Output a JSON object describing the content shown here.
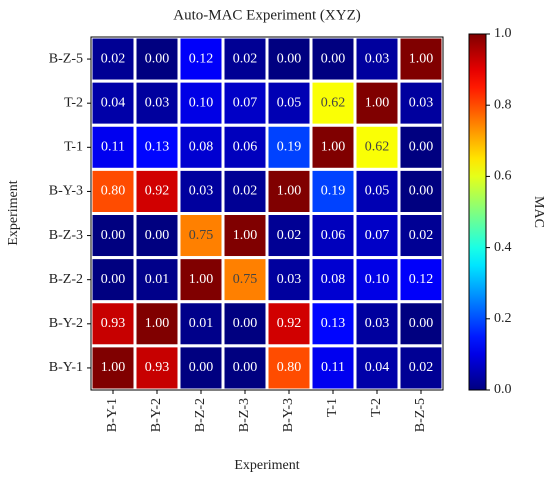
{
  "chart_data": {
    "type": "heatmap",
    "title": "Auto-MAC Experiment (XYZ)",
    "x_label": "Experiment",
    "y_label": "Experiment",
    "x_categories": [
      "B-Y-1",
      "B-Y-2",
      "B-Z-2",
      "B-Z-3",
      "B-Y-3",
      "T-1",
      "T-2",
      "B-Z-5"
    ],
    "y_categories": [
      "B-Z-5",
      "T-2",
      "T-1",
      "B-Y-3",
      "B-Z-3",
      "B-Z-2",
      "B-Y-2",
      "B-Y-1"
    ],
    "values": [
      [
        0.02,
        0,
        0.12,
        0.02,
        0,
        0,
        0.03,
        1
      ],
      [
        0.04,
        0.03,
        0.1,
        0.07,
        0.05,
        0.62,
        1,
        0.03
      ],
      [
        0.11,
        0.13,
        0.08,
        0.06,
        0.19,
        1,
        0.62,
        0
      ],
      [
        0.8,
        0.92,
        0.03,
        0.02,
        1,
        0.19,
        0.05,
        0
      ],
      [
        0,
        0,
        0.75,
        1,
        0.02,
        0.06,
        0.07,
        0.02
      ],
      [
        0,
        0.01,
        1,
        0.75,
        0.03,
        0.08,
        0.1,
        0.12
      ],
      [
        0.93,
        1,
        0.01,
        0,
        0.92,
        0.13,
        0.03,
        0
      ],
      [
        1,
        0.93,
        0,
        0,
        0.8,
        0.11,
        0.04,
        0.02
      ]
    ],
    "value_labels": [
      [
        "0.02",
        "0.00",
        "0.12",
        "0.02",
        "0.00",
        "0.00",
        "0.03",
        "1.00"
      ],
      [
        "0.04",
        "0.03",
        "0.10",
        "0.07",
        "0.05",
        "0.62",
        "1.00",
        "0.03"
      ],
      [
        "0.11",
        "0.13",
        "0.08",
        "0.06",
        "0.19",
        "1.00",
        "0.62",
        "0.00"
      ],
      [
        "0.80",
        "0.92",
        "0.03",
        "0.02",
        "1.00",
        "0.19",
        "0.05",
        "0.00"
      ],
      [
        "0.00",
        "0.00",
        "0.75",
        "1.00",
        "0.02",
        "0.06",
        "0.07",
        "0.02"
      ],
      [
        "0.00",
        "0.01",
        "1.00",
        "0.75",
        "0.03",
        "0.08",
        "0.10",
        "0.12"
      ],
      [
        "0.93",
        "1.00",
        "0.01",
        "0.00",
        "0.92",
        "0.13",
        "0.03",
        "0.00"
      ],
      [
        "1.00",
        "0.93",
        "0.00",
        "0.00",
        "0.80",
        "0.11",
        "0.04",
        "0.02"
      ]
    ],
    "colormap": "jet",
    "colorbar_label": "MAC",
    "clim": [
      0,
      1
    ],
    "cticks": [
      {
        "value": 0,
        "label": "0.0"
      },
      {
        "value": 0.2,
        "label": "0.2"
      },
      {
        "value": 0.4,
        "label": "0.4"
      },
      {
        "value": 0.6,
        "label": "0.6"
      },
      {
        "value": 0.8,
        "label": "0.8"
      },
      {
        "value": 1,
        "label": "1.0"
      }
    ]
  }
}
